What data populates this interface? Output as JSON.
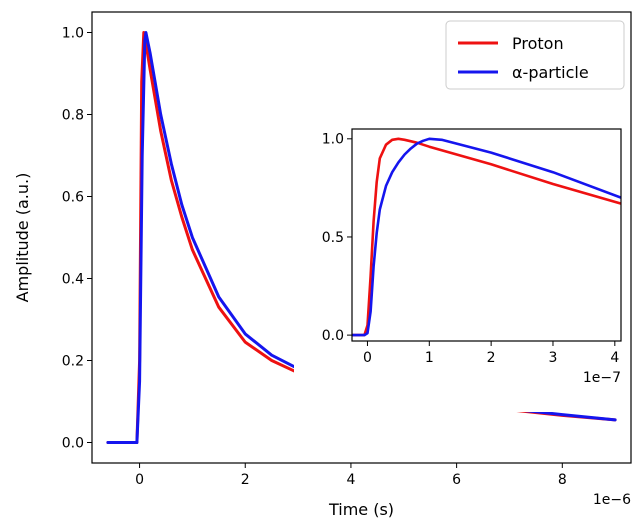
{
  "chart_data": [
    {
      "type": "line",
      "xlabel": "Time (s)",
      "ylabel": "Amplitude (a.u.)",
      "x_offset_label": "1e−6",
      "xlim": [
        -0.9,
        9.3
      ],
      "ylim": [
        -0.05,
        1.05
      ],
      "xticks": [
        0,
        2,
        4,
        6,
        8
      ],
      "xtick_labels": [
        "0",
        "2",
        "4",
        "6",
        "8"
      ],
      "yticks": [
        0.0,
        0.2,
        0.4,
        0.6,
        0.8,
        1.0
      ],
      "ytick_labels": [
        "0.0",
        "0.2",
        "0.4",
        "0.6",
        "0.8",
        "1.0"
      ],
      "legend_position": "top-right",
      "series": [
        {
          "name": "Proton",
          "color": "#ee1111",
          "x": [
            -0.6,
            -0.05,
            0.0,
            0.04,
            0.08,
            0.1,
            0.2,
            0.4,
            0.6,
            0.8,
            1.0,
            1.5,
            2.0,
            2.5,
            3.0,
            3.5,
            4.0,
            5.0,
            6.0,
            7.0,
            8.0,
            9.0
          ],
          "y": [
            0.0,
            0.0,
            0.2,
            0.88,
            1.0,
            0.99,
            0.91,
            0.76,
            0.64,
            0.55,
            0.47,
            0.33,
            0.245,
            0.2,
            0.17,
            0.148,
            0.132,
            0.11,
            0.094,
            0.08,
            0.066,
            0.055
          ]
        },
        {
          "name": "α-particle",
          "color": "#1515ee",
          "x": [
            -0.6,
            -0.05,
            0.0,
            0.05,
            0.1,
            0.12,
            0.2,
            0.4,
            0.6,
            0.8,
            1.0,
            1.5,
            2.0,
            2.5,
            3.0,
            3.5,
            4.0,
            5.0,
            6.0,
            7.0,
            8.0,
            9.0
          ],
          "y": [
            0.0,
            0.0,
            0.15,
            0.7,
            0.98,
            1.0,
            0.95,
            0.8,
            0.68,
            0.58,
            0.5,
            0.355,
            0.265,
            0.213,
            0.18,
            0.155,
            0.137,
            0.113,
            0.097,
            0.082,
            0.068,
            0.055
          ]
        }
      ]
    },
    {
      "type": "line",
      "placement": "inset",
      "x_offset_label": "1e−7",
      "xlim": [
        -0.25,
        4.1
      ],
      "ylim": [
        -0.03,
        1.05
      ],
      "xticks": [
        0,
        1,
        2,
        3,
        4
      ],
      "xtick_labels": [
        "0",
        "1",
        "2",
        "3",
        "4"
      ],
      "yticks": [
        0.0,
        0.5,
        1.0
      ],
      "ytick_labels": [
        "0.0",
        "0.5",
        "1.0"
      ],
      "series": [
        {
          "name": "Proton",
          "color": "#ee1111",
          "x": [
            -0.25,
            -0.05,
            0.0,
            0.05,
            0.1,
            0.15,
            0.2,
            0.3,
            0.4,
            0.5,
            0.6,
            0.8,
            1.0,
            2.0,
            3.0,
            4.1
          ],
          "y": [
            0.0,
            0.0,
            0.05,
            0.3,
            0.58,
            0.78,
            0.9,
            0.97,
            0.995,
            1.0,
            0.995,
            0.98,
            0.96,
            0.87,
            0.77,
            0.67
          ]
        },
        {
          "name": "α-particle",
          "color": "#1515ee",
          "x": [
            -0.25,
            -0.05,
            0.0,
            0.05,
            0.1,
            0.15,
            0.2,
            0.3,
            0.4,
            0.5,
            0.6,
            0.7,
            0.8,
            0.9,
            1.0,
            1.2,
            2.0,
            3.0,
            4.1
          ],
          "y": [
            0.0,
            0.0,
            0.01,
            0.12,
            0.35,
            0.52,
            0.64,
            0.76,
            0.83,
            0.88,
            0.92,
            0.95,
            0.975,
            0.99,
            1.0,
            0.995,
            0.93,
            0.83,
            0.7
          ]
        }
      ]
    }
  ]
}
